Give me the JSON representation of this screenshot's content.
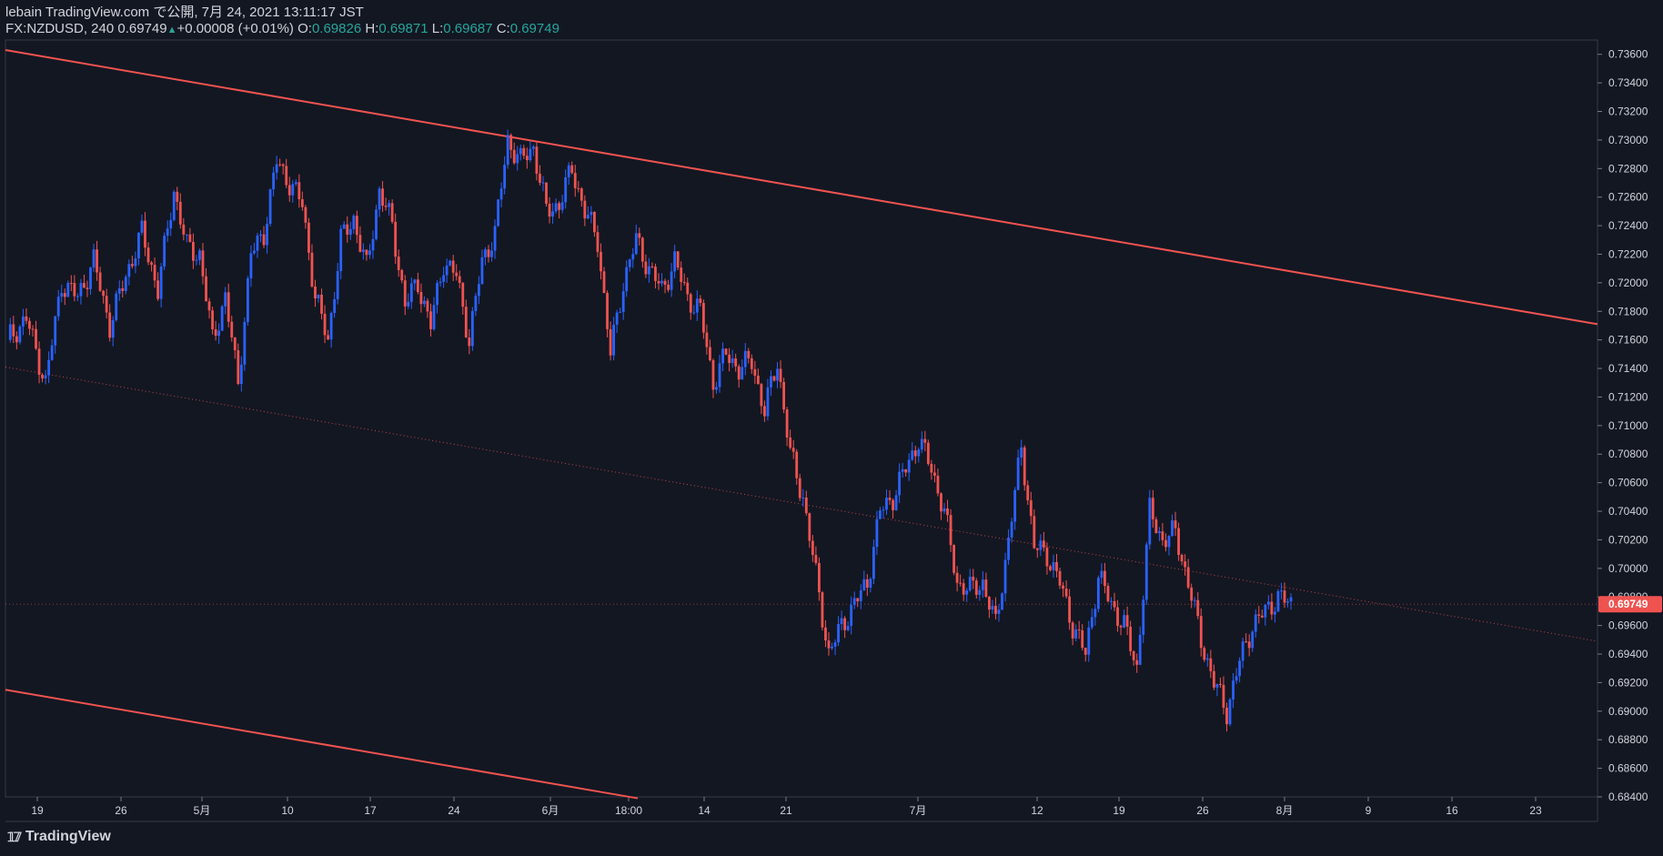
{
  "header": {
    "line1": "lebain TradingView.com で公開, 7月 24, 2021 13:11:17 JST",
    "symbol": "FX:NZDUSD, 240",
    "last": "0.69749",
    "change": "+0.00008 (+0.01%)",
    "o_label": "O:",
    "o_value": "0.69826",
    "h_label": "H:",
    "h_value": "0.69871",
    "l_label": "L:",
    "l_value": "0.69687",
    "c_label": "C:",
    "c_value": "0.69749"
  },
  "footer": {
    "brand": "TradingView"
  },
  "colors": {
    "background": "#131722",
    "up": "#2962ff",
    "down": "#ef5350",
    "line": "#f05350",
    "price_label": "#ffffff"
  },
  "chart_data": {
    "type": "candlestick",
    "symbol": "FX:NZDUSD",
    "timeframe": "240",
    "ylim": [
      0.684,
      0.737
    ],
    "y_ticks": [
      "0.73600",
      "0.73400",
      "0.73200",
      "0.73000",
      "0.72800",
      "0.72600",
      "0.72400",
      "0.72200",
      "0.72000",
      "0.71800",
      "0.71600",
      "0.71400",
      "0.71200",
      "0.71000",
      "0.70800",
      "0.70600",
      "0.70400",
      "0.70200",
      "0.70000",
      "0.69800",
      "0.69600",
      "0.69400",
      "0.69200",
      "0.69000",
      "0.68800",
      "0.68600",
      "0.68400"
    ],
    "x_ticks": [
      "19",
      "26",
      "5月",
      "10",
      "17",
      "24",
      "6月",
      "18:00",
      "14",
      "21",
      "7月",
      "12",
      "19",
      "26",
      "8月",
      "9",
      "16",
      "23"
    ],
    "current_price": "0.69749",
    "price_path": [
      [
        0,
        0.716
      ],
      [
        6,
        0.7175
      ],
      [
        12,
        0.713
      ],
      [
        17,
        0.72
      ],
      [
        22,
        0.719
      ],
      [
        27,
        0.7215
      ],
      [
        32,
        0.717
      ],
      [
        37,
        0.7205
      ],
      [
        42,
        0.7235
      ],
      [
        47,
        0.7195
      ],
      [
        52,
        0.7265
      ],
      [
        56,
        0.7225
      ],
      [
        60,
        0.722
      ],
      [
        64,
        0.716
      ],
      [
        68,
        0.719
      ],
      [
        72,
        0.713
      ],
      [
        76,
        0.722
      ],
      [
        80,
        0.7235
      ],
      [
        84,
        0.7285
      ],
      [
        88,
        0.727
      ],
      [
        92,
        0.7255
      ],
      [
        96,
        0.719
      ],
      [
        100,
        0.716
      ],
      [
        104,
        0.723
      ],
      [
        108,
        0.7245
      ],
      [
        112,
        0.721
      ],
      [
        116,
        0.7265
      ],
      [
        120,
        0.724
      ],
      [
        124,
        0.7185
      ],
      [
        128,
        0.72
      ],
      [
        132,
        0.717
      ],
      [
        136,
        0.7215
      ],
      [
        140,
        0.7205
      ],
      [
        144,
        0.716
      ],
      [
        148,
        0.7215
      ],
      [
        152,
        0.7235
      ],
      [
        156,
        0.73
      ],
      [
        160,
        0.7285
      ],
      [
        164,
        0.7295
      ],
      [
        168,
        0.725
      ],
      [
        172,
        0.7255
      ],
      [
        176,
        0.728
      ],
      [
        180,
        0.725
      ],
      [
        184,
        0.723
      ],
      [
        188,
        0.715
      ],
      [
        192,
        0.72
      ],
      [
        196,
        0.723
      ],
      [
        200,
        0.721
      ],
      [
        204,
        0.7195
      ],
      [
        208,
        0.7215
      ],
      [
        212,
        0.719
      ],
      [
        216,
        0.718
      ],
      [
        220,
        0.713
      ],
      [
        224,
        0.715
      ],
      [
        228,
        0.714
      ],
      [
        232,
        0.7145
      ],
      [
        236,
        0.711
      ],
      [
        240,
        0.7145
      ],
      [
        244,
        0.708
      ],
      [
        248,
        0.705
      ],
      [
        252,
        0.6995
      ],
      [
        256,
        0.694
      ],
      [
        260,
        0.696
      ],
      [
        264,
        0.6975
      ],
      [
        268,
        0.699
      ],
      [
        272,
        0.704
      ],
      [
        276,
        0.705
      ],
      [
        280,
        0.707
      ],
      [
        284,
        0.709
      ],
      [
        288,
        0.707
      ],
      [
        292,
        0.704
      ],
      [
        296,
        0.699
      ],
      [
        300,
        0.6985
      ],
      [
        304,
        0.699
      ],
      [
        308,
        0.696
      ],
      [
        312,
        0.702
      ],
      [
        316,
        0.7085
      ],
      [
        320,
        0.7015
      ],
      [
        324,
        0.701
      ],
      [
        328,
        0.699
      ],
      [
        332,
        0.696
      ],
      [
        336,
        0.694
      ],
      [
        340,
        0.6995
      ],
      [
        344,
        0.6975
      ],
      [
        348,
        0.696
      ],
      [
        352,
        0.693
      ],
      [
        356,
        0.704
      ],
      [
        360,
        0.702
      ],
      [
        364,
        0.7025
      ],
      [
        368,
        0.699
      ],
      [
        372,
        0.695
      ],
      [
        376,
        0.692
      ],
      [
        380,
        0.69
      ],
      [
        384,
        0.6935
      ],
      [
        388,
        0.696
      ],
      [
        392,
        0.697
      ],
      [
        396,
        0.698
      ],
      [
        400,
        0.6975
      ]
    ],
    "trendlines": [
      {
        "name": "upper",
        "from": [
          0,
          0.7363
        ],
        "to": [
          496,
          0.7171
        ],
        "style": "solid"
      },
      {
        "name": "middle",
        "from": [
          0,
          0.7141
        ],
        "to": [
          496,
          0.6949
        ],
        "style": "dotted"
      },
      {
        "name": "lower",
        "from": [
          0,
          0.6915
        ],
        "to": [
          197,
          0.6839
        ],
        "style": "solid"
      }
    ],
    "grid": false
  }
}
